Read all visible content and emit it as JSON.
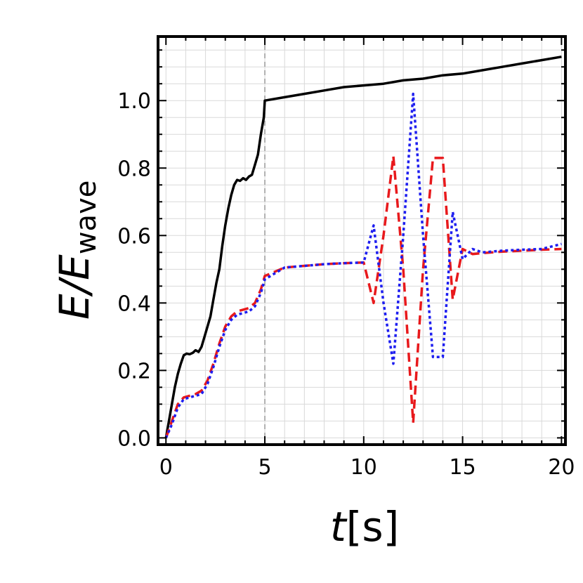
{
  "chart_data": {
    "type": "line",
    "title": "",
    "xlabel": {
      "main": "t",
      "unit": "[s]"
    },
    "ylabel": {
      "main": "E/E",
      "sub": "wave"
    },
    "xlim": [
      -0.4,
      20.2
    ],
    "ylim": [
      -0.02,
      1.19
    ],
    "x_ticks": [
      0,
      5,
      10,
      15,
      20
    ],
    "x_tick_labels": [
      "0",
      "5",
      "10",
      "15",
      "20"
    ],
    "y_ticks": [
      0.0,
      0.2,
      0.4,
      0.6,
      0.8,
      1.0
    ],
    "y_tick_labels": [
      "0.0",
      "0.2",
      "0.4",
      "0.6",
      "0.8",
      "1.0"
    ],
    "grid": true,
    "vline": {
      "x": 5,
      "color": "#999999",
      "style": "dashed"
    },
    "series": [
      {
        "color": "#000000",
        "style": "solid",
        "x": [
          0,
          0.15,
          0.3,
          0.45,
          0.6,
          0.75,
          0.9,
          1.05,
          1.2,
          1.35,
          1.5,
          1.65,
          1.8,
          1.95,
          2.1,
          2.25,
          2.4,
          2.55,
          2.7,
          2.85,
          3.0,
          3.15,
          3.3,
          3.45,
          3.6,
          3.75,
          3.9,
          4.05,
          4.2,
          4.35,
          4.5,
          4.65,
          4.8,
          4.95,
          5.0,
          6,
          7,
          8,
          9,
          10,
          11,
          12,
          13,
          14,
          15,
          16,
          17,
          18,
          19,
          20
        ],
        "y": [
          0.0,
          0.05,
          0.1,
          0.15,
          0.19,
          0.22,
          0.245,
          0.25,
          0.248,
          0.252,
          0.26,
          0.255,
          0.27,
          0.3,
          0.33,
          0.36,
          0.41,
          0.46,
          0.5,
          0.57,
          0.63,
          0.68,
          0.72,
          0.75,
          0.765,
          0.762,
          0.77,
          0.765,
          0.775,
          0.78,
          0.81,
          0.84,
          0.9,
          0.95,
          1.0,
          1.01,
          1.02,
          1.03,
          1.04,
          1.045,
          1.05,
          1.06,
          1.065,
          1.075,
          1.08,
          1.09,
          1.1,
          1.11,
          1.12,
          1.13
        ]
      },
      {
        "color": "#e8191c",
        "style": "dashed",
        "x": [
          0,
          0.3,
          0.6,
          0.9,
          1.2,
          1.5,
          1.8,
          2.1,
          2.4,
          2.7,
          3.0,
          3.3,
          3.6,
          3.9,
          4.2,
          4.5,
          4.8,
          5.0,
          6,
          7,
          8,
          9,
          10,
          10.5,
          11,
          11.5,
          12,
          12.5,
          13,
          13.5,
          14,
          14.5,
          15,
          15.5,
          16,
          17,
          18,
          19,
          20
        ],
        "y": [
          0.0,
          0.05,
          0.1,
          0.12,
          0.125,
          0.13,
          0.14,
          0.17,
          0.22,
          0.28,
          0.33,
          0.36,
          0.375,
          0.38,
          0.385,
          0.4,
          0.44,
          0.48,
          0.505,
          0.51,
          0.515,
          0.518,
          0.52,
          0.4,
          0.6,
          0.835,
          0.5,
          0.045,
          0.5,
          0.83,
          0.83,
          0.41,
          0.56,
          0.545,
          0.548,
          0.552,
          0.555,
          0.558,
          0.56
        ]
      },
      {
        "color": "#1e1ef0",
        "style": "dotted",
        "x": [
          0,
          0.3,
          0.6,
          0.9,
          1.2,
          1.5,
          1.8,
          2.1,
          2.4,
          2.7,
          3.0,
          3.3,
          3.6,
          3.9,
          4.2,
          4.5,
          4.8,
          5.0,
          6,
          7,
          8,
          9,
          10,
          10.5,
          11,
          11.5,
          12,
          12.5,
          13,
          13.5,
          14,
          14.5,
          15,
          15.5,
          16,
          17,
          18,
          19,
          20
        ],
        "y": [
          0.0,
          0.04,
          0.09,
          0.115,
          0.12,
          0.125,
          0.13,
          0.16,
          0.21,
          0.27,
          0.32,
          0.35,
          0.365,
          0.37,
          0.375,
          0.39,
          0.43,
          0.47,
          0.505,
          0.51,
          0.515,
          0.518,
          0.52,
          0.63,
          0.4,
          0.22,
          0.6,
          1.02,
          0.6,
          0.24,
          0.24,
          0.67,
          0.53,
          0.56,
          0.55,
          0.555,
          0.558,
          0.56,
          0.575
        ]
      }
    ]
  }
}
